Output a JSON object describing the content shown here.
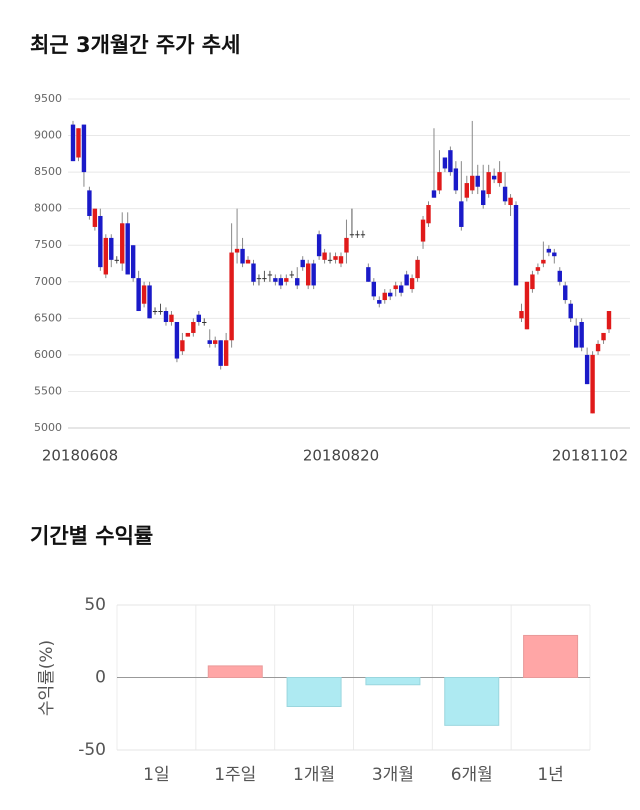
{
  "chart_data": [
    {
      "type": "candlestick",
      "title": "최근 3개월간 주가 추세",
      "categories": [
        "20180608",
        null,
        null,
        null,
        null,
        null,
        null,
        null,
        null,
        null,
        null,
        null,
        null,
        null,
        null,
        null,
        null,
        null,
        null,
        null,
        null,
        null,
        null,
        null,
        null,
        null,
        null,
        null,
        null,
        null,
        null,
        null,
        null,
        null,
        null,
        null,
        null,
        null,
        null,
        null,
        null,
        null,
        null,
        null,
        null,
        null,
        null,
        null,
        null,
        "20180820",
        null,
        null,
        null,
        null,
        null,
        null,
        null,
        null,
        null,
        null,
        null,
        null,
        null,
        null,
        null,
        null,
        null,
        null,
        null,
        null,
        null,
        null,
        null,
        null,
        null,
        null,
        null,
        null,
        null,
        null,
        null,
        null,
        null,
        null,
        null,
        null,
        null,
        null,
        null,
        null,
        null,
        null,
        null,
        null,
        null,
        null,
        null,
        null,
        "20181102"
      ],
      "open": [
        9150,
        8700,
        9150,
        8250,
        7750,
        7900,
        7100,
        7600,
        7300,
        7250,
        7800,
        7500,
        7050,
        6700,
        6950,
        6600,
        6600,
        6600,
        6450,
        6450,
        6050,
        6250,
        6300,
        6550,
        6450,
        6200,
        6150,
        6200,
        5850,
        6200,
        7400,
        7450,
        7250,
        7250,
        7050,
        7050,
        7100,
        7050,
        7050,
        7000,
        7100,
        7050,
        7300,
        6950,
        7250,
        7650,
        7300,
        7300,
        7300,
        7250,
        7400,
        7650,
        7650,
        7650,
        7200,
        7000,
        6750,
        6750,
        6850,
        6900,
        6950,
        7100,
        6900,
        7050,
        7550,
        7800,
        8250,
        8250,
        8700,
        8800,
        8550,
        8100,
        8150,
        8250,
        8450,
        8250,
        8200,
        8450,
        8350,
        8300,
        8050,
        8050,
        6500,
        6350,
        6900,
        7150,
        7250,
        7450,
        7400,
        7150,
        6950,
        6700,
        6400,
        6450,
        6000,
        5200,
        6050,
        6200,
        6350
      ],
      "high": [
        9200,
        9100,
        9150,
        8300,
        8000,
        8000,
        7650,
        7650,
        7350,
        7950,
        7950,
        7500,
        7150,
        7000,
        7000,
        6650,
        6700,
        6650,
        6600,
        6450,
        6300,
        6300,
        6500,
        6600,
        6500,
        6350,
        6250,
        6200,
        6300,
        7800,
        8000,
        7600,
        7350,
        7300,
        7100,
        7150,
        7150,
        7100,
        7100,
        7100,
        7150,
        7200,
        7350,
        7300,
        7300,
        7700,
        7450,
        7400,
        7400,
        7400,
        7850,
        8000,
        7700,
        7700,
        7250,
        7050,
        6800,
        6900,
        6900,
        7000,
        7000,
        7150,
        7100,
        7350,
        7900,
        8100,
        9100,
        8800,
        8700,
        8850,
        8650,
        8650,
        8450,
        9200,
        8600,
        8600,
        8600,
        8550,
        8650,
        8500,
        8200,
        8100,
        6700,
        7000,
        7150,
        7250,
        7550,
        7500,
        7450,
        7200,
        7000,
        6750,
        6500,
        6500,
        6100,
        6050,
        6200,
        6300,
        6600
      ],
      "low": [
        8650,
        8650,
        8300,
        7850,
        7700,
        7150,
        7050,
        7200,
        7250,
        7150,
        7100,
        7000,
        6600,
        6650,
        6500,
        6550,
        6550,
        6400,
        6400,
        5900,
        6000,
        6250,
        6250,
        6400,
        6400,
        6100,
        6100,
        5800,
        5850,
        6100,
        7250,
        7200,
        7250,
        6950,
        6950,
        7000,
        7000,
        6950,
        6900,
        6950,
        7050,
        6900,
        7150,
        6900,
        6900,
        7300,
        7250,
        7250,
        7250,
        7200,
        7250,
        7600,
        7600,
        7600,
        7000,
        6750,
        6650,
        6700,
        6750,
        6800,
        6800,
        6950,
        6850,
        7000,
        7450,
        7750,
        8150,
        8200,
        8500,
        8450,
        8200,
        7700,
        8100,
        8200,
        8200,
        8000,
        8150,
        8350,
        8300,
        8050,
        7900,
        6950,
        6450,
        6350,
        6850,
        7100,
        7200,
        7350,
        7250,
        6950,
        6700,
        6450,
        6100,
        6050,
        5600,
        5200,
        6000,
        6150,
        6300
      ],
      "close": [
        8650,
        9100,
        8500,
        7900,
        8000,
        7200,
        7600,
        7300,
        7300,
        7800,
        7100,
        7050,
        6600,
        6950,
        6500,
        6600,
        6600,
        6450,
        6550,
        5950,
        6200,
        6300,
        6450,
        6450,
        6450,
        6150,
        6200,
        5850,
        6200,
        7400,
        7450,
        7250,
        7300,
        7000,
        7050,
        7050,
        7100,
        7000,
        6950,
        7050,
        7100,
        6950,
        7200,
        7250,
        6950,
        7350,
        7400,
        7300,
        7350,
        7350,
        7600,
        7650,
        7650,
        7650,
        7000,
        6800,
        6700,
        6850,
        6800,
        6950,
        6850,
        6950,
        7050,
        7300,
        7850,
        8050,
        8150,
        8500,
        8550,
        8500,
        8250,
        7750,
        8350,
        8450,
        8300,
        8050,
        8500,
        8400,
        8500,
        8100,
        8150,
        6950,
        6600,
        7000,
        7100,
        7200,
        7300,
        7400,
        7350,
        7000,
        6750,
        6500,
        6100,
        6100,
        5600,
        6000,
        6150,
        6300,
        6600
      ],
      "up_color": "#e01a1a",
      "down_color": "#1a1ac8",
      "ylim": [
        5000,
        9500
      ],
      "yticks": [
        5000,
        5500,
        6000,
        6500,
        7000,
        7500,
        8000,
        8500,
        9000,
        9500
      ],
      "grid": true
    },
    {
      "type": "bar",
      "title": "기간별 수익률",
      "y_label": "수익률(%)",
      "categories": [
        "1일",
        "1주일",
        "1개월",
        "3개월",
        "6개월",
        "1년"
      ],
      "values": [
        0,
        8,
        -20,
        -5,
        -33,
        29
      ],
      "positive_color": "#ffa6a6",
      "negative_color": "#aeeaf2",
      "ylim": [
        -50,
        50
      ],
      "yticks": [
        -50,
        0,
        50
      ],
      "grid": true
    }
  ]
}
